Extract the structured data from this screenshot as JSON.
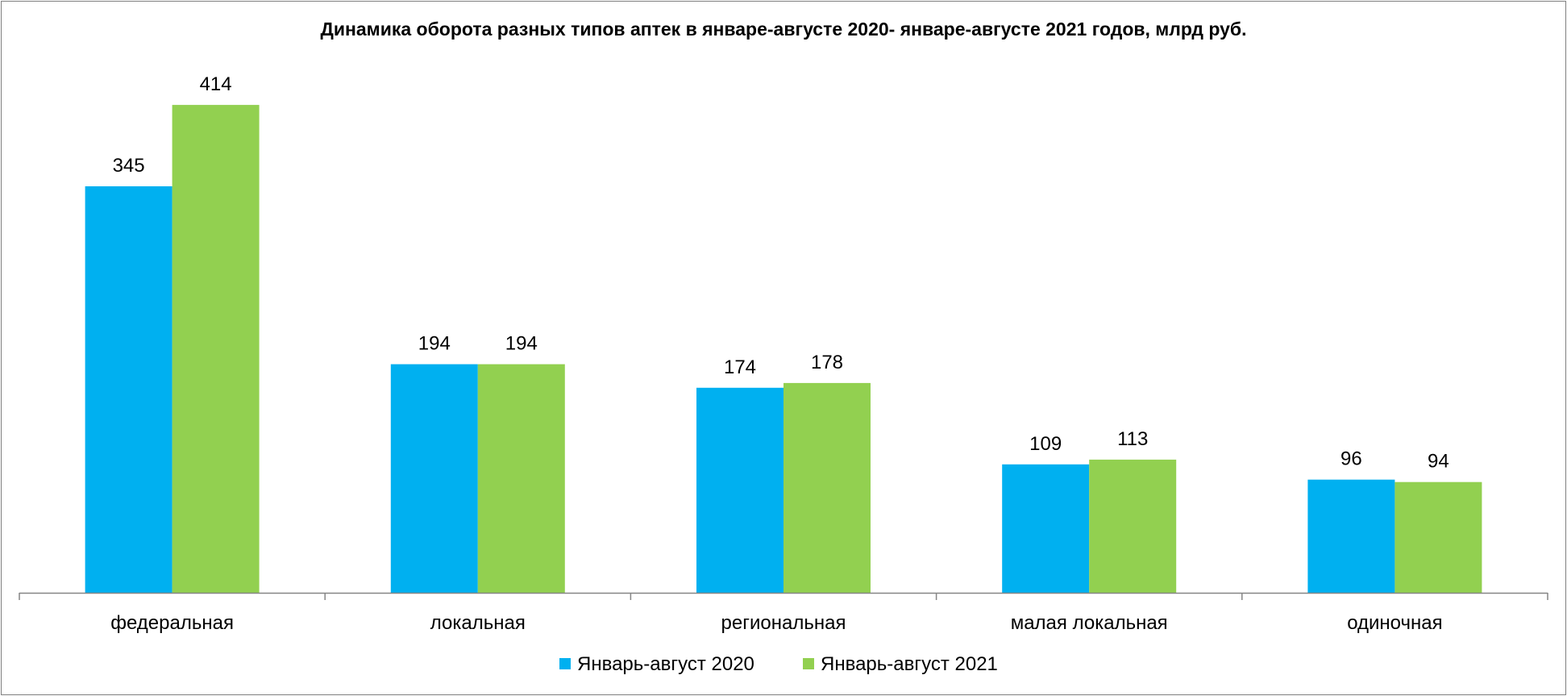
{
  "chart_data": {
    "type": "bar",
    "title": "Динамика оборота  разных типов аптек в январе-августе 2020- январе-августе 2021 годов, млрд руб.",
    "categories": [
      "федеральная",
      "локальная",
      "региональная",
      "малая локальная",
      "одиночная"
    ],
    "series": [
      {
        "name": "Январь-август 2020",
        "values": [
          345,
          194,
          174,
          109,
          96
        ],
        "color": "#00B0F0"
      },
      {
        "name": "Январь-август 2021",
        "values": [
          414,
          194,
          178,
          113,
          94
        ],
        "color": "#92D050"
      }
    ],
    "xlabel": "",
    "ylabel": "",
    "ylim": [
      0,
      500
    ],
    "grid": false,
    "legend_position": "bottom"
  }
}
